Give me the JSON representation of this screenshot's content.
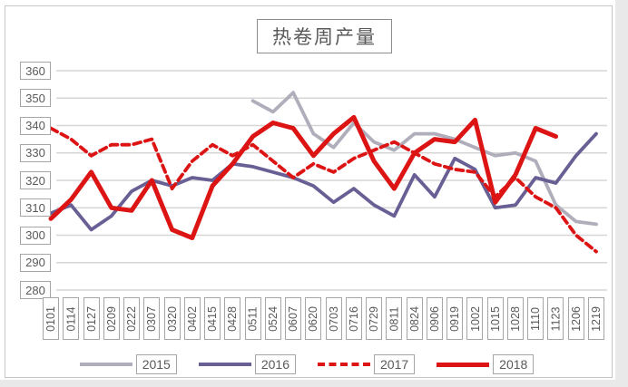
{
  "title": "热卷周产量",
  "chart_data": {
    "type": "line",
    "title": "热卷周产量",
    "xlabel": "",
    "ylabel": "",
    "ylim": [
      280,
      360
    ],
    "y_ticks": [
      360,
      350,
      340,
      330,
      320,
      310,
      300,
      290,
      280
    ],
    "grid": true,
    "legend_position": "bottom",
    "categories": [
      "0101",
      "0114",
      "0127",
      "0209",
      "0222",
      "0307",
      "0320",
      "0402",
      "0415",
      "0428",
      "0511",
      "0524",
      "0607",
      "0620",
      "0703",
      "0716",
      "0729",
      "0811",
      "0824",
      "0906",
      "0919",
      "1002",
      "1015",
      "1028",
      "1110",
      "1123",
      "1206",
      "1219"
    ],
    "series": [
      {
        "name": "2015",
        "color": "#b1aebb",
        "dash": "solid",
        "width": 3.8,
        "values": [
          null,
          null,
          null,
          null,
          null,
          null,
          null,
          null,
          null,
          null,
          349,
          345,
          352,
          337,
          332,
          341,
          334,
          331,
          337,
          337,
          335,
          332,
          329,
          330,
          327,
          311,
          305,
          304
        ]
      },
      {
        "name": "2016",
        "color": "#695f94",
        "dash": "solid",
        "width": 3.8,
        "values": [
          308,
          311,
          302,
          307,
          316,
          320,
          318,
          321,
          320,
          326,
          325,
          323,
          321,
          318,
          312,
          317,
          311,
          307,
          322,
          314,
          328,
          324,
          310,
          311,
          321,
          319,
          329,
          337
        ]
      },
      {
        "name": "2017",
        "color": "#dd1414",
        "dash": "dashed",
        "width": 3.8,
        "values": [
          339,
          335,
          329,
          333,
          333,
          335,
          317,
          327,
          333,
          329,
          333,
          327,
          321,
          326,
          323,
          328,
          331,
          334,
          330,
          326,
          324,
          323,
          314,
          321,
          314,
          310,
          300,
          294
        ]
      },
      {
        "name": "2018",
        "color": "#dd1414",
        "dash": "solid",
        "width": 5,
        "values": [
          306,
          313,
          323,
          310,
          309,
          320,
          302,
          299,
          318,
          326,
          336,
          341,
          339,
          329,
          337,
          343,
          327,
          317,
          330,
          335,
          334,
          342,
          312,
          322,
          339,
          336,
          null,
          null
        ]
      }
    ]
  }
}
